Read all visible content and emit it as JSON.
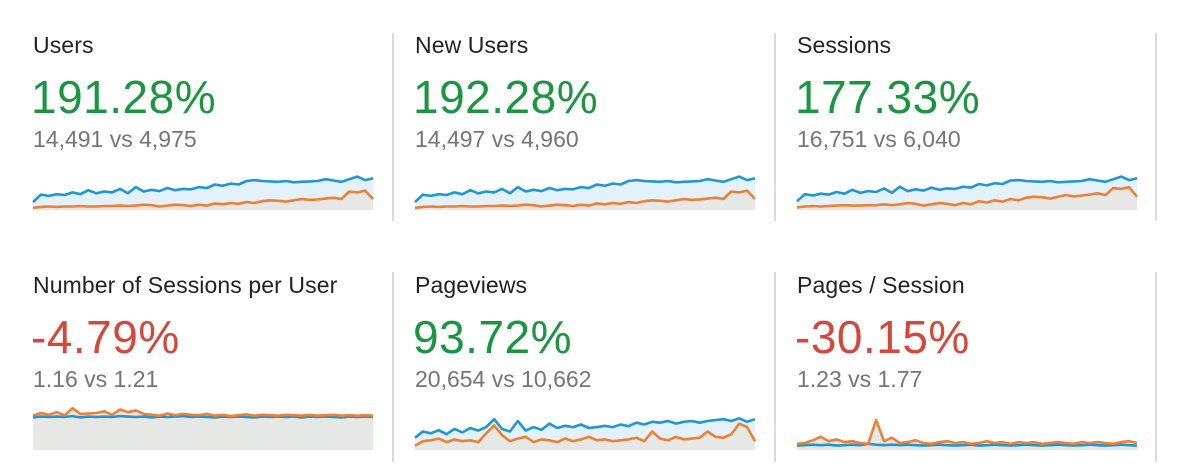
{
  "colors": {
    "positive": "#1a9641",
    "negative": "#d6463a",
    "current_line": "#2196d3",
    "current_fill": "#e3f2fa",
    "previous_line": "#ef7f33",
    "previous_fill": "#e6e8e6"
  },
  "metrics": [
    {
      "label": "Users",
      "change": "191.28%",
      "trend": "positive",
      "comparison": "14,491 vs 4,975",
      "spark_current": [
        0.18,
        0.35,
        0.32,
        0.36,
        0.34,
        0.4,
        0.36,
        0.45,
        0.38,
        0.42,
        0.4,
        0.48,
        0.38,
        0.52,
        0.42,
        0.46,
        0.43,
        0.5,
        0.45,
        0.48,
        0.47,
        0.52,
        0.5,
        0.58,
        0.55,
        0.6,
        0.58,
        0.66,
        0.68,
        0.66,
        0.65,
        0.64,
        0.66,
        0.63,
        0.64,
        0.65,
        0.66,
        0.7,
        0.67,
        0.64,
        0.7,
        0.76,
        0.68,
        0.72
      ],
      "spark_previous": [
        0.05,
        0.07,
        0.08,
        0.07,
        0.08,
        0.08,
        0.09,
        0.08,
        0.08,
        0.09,
        0.09,
        0.1,
        0.09,
        0.1,
        0.12,
        0.11,
        0.08,
        0.1,
        0.12,
        0.11,
        0.09,
        0.12,
        0.1,
        0.15,
        0.13,
        0.16,
        0.14,
        0.18,
        0.16,
        0.2,
        0.22,
        0.21,
        0.19,
        0.22,
        0.25,
        0.23,
        0.24,
        0.26,
        0.28,
        0.25,
        0.42,
        0.4,
        0.44,
        0.25
      ]
    },
    {
      "label": "New Users",
      "change": "192.28%",
      "trend": "positive",
      "comparison": "14,497 vs 4,960",
      "spark_current": [
        0.18,
        0.35,
        0.32,
        0.36,
        0.34,
        0.4,
        0.36,
        0.45,
        0.38,
        0.42,
        0.4,
        0.48,
        0.38,
        0.52,
        0.42,
        0.46,
        0.43,
        0.5,
        0.45,
        0.48,
        0.47,
        0.52,
        0.5,
        0.58,
        0.55,
        0.6,
        0.58,
        0.66,
        0.68,
        0.66,
        0.65,
        0.64,
        0.66,
        0.63,
        0.64,
        0.65,
        0.66,
        0.7,
        0.67,
        0.64,
        0.7,
        0.76,
        0.68,
        0.72
      ],
      "spark_previous": [
        0.05,
        0.07,
        0.08,
        0.07,
        0.08,
        0.08,
        0.09,
        0.08,
        0.08,
        0.09,
        0.09,
        0.1,
        0.09,
        0.1,
        0.12,
        0.11,
        0.08,
        0.1,
        0.12,
        0.11,
        0.09,
        0.12,
        0.1,
        0.15,
        0.13,
        0.16,
        0.14,
        0.18,
        0.16,
        0.2,
        0.22,
        0.21,
        0.19,
        0.22,
        0.25,
        0.23,
        0.24,
        0.26,
        0.28,
        0.25,
        0.42,
        0.4,
        0.44,
        0.25
      ]
    },
    {
      "label": "Sessions",
      "change": "177.33%",
      "trend": "positive",
      "comparison": "16,751 vs 6,040",
      "spark_current": [
        0.2,
        0.36,
        0.33,
        0.37,
        0.35,
        0.41,
        0.37,
        0.46,
        0.39,
        0.43,
        0.41,
        0.49,
        0.39,
        0.53,
        0.43,
        0.47,
        0.44,
        0.51,
        0.46,
        0.49,
        0.48,
        0.53,
        0.51,
        0.59,
        0.56,
        0.61,
        0.59,
        0.67,
        0.68,
        0.66,
        0.65,
        0.64,
        0.66,
        0.63,
        0.64,
        0.65,
        0.66,
        0.7,
        0.67,
        0.64,
        0.7,
        0.76,
        0.68,
        0.72
      ],
      "spark_previous": [
        0.06,
        0.08,
        0.09,
        0.08,
        0.09,
        0.1,
        0.11,
        0.1,
        0.1,
        0.11,
        0.11,
        0.13,
        0.11,
        0.13,
        0.16,
        0.14,
        0.1,
        0.13,
        0.16,
        0.14,
        0.11,
        0.16,
        0.13,
        0.2,
        0.17,
        0.22,
        0.19,
        0.25,
        0.22,
        0.28,
        0.3,
        0.29,
        0.26,
        0.3,
        0.34,
        0.31,
        0.33,
        0.35,
        0.38,
        0.34,
        0.5,
        0.48,
        0.52,
        0.3
      ]
    },
    {
      "label": "Number of Sessions per User",
      "change": "-4.79%",
      "trend": "negative",
      "comparison": "1.16 vs 1.21",
      "spark_current": [
        0.74,
        0.76,
        0.75,
        0.76,
        0.75,
        0.77,
        0.74,
        0.76,
        0.75,
        0.76,
        0.75,
        0.77,
        0.76,
        0.75,
        0.76,
        0.74,
        0.76,
        0.75,
        0.76,
        0.77,
        0.75,
        0.76,
        0.75,
        0.74,
        0.76,
        0.75,
        0.76,
        0.75,
        0.74,
        0.76,
        0.75,
        0.76,
        0.75,
        0.76,
        0.74,
        0.76,
        0.75,
        0.76,
        0.75,
        0.74,
        0.76,
        0.75,
        0.76,
        0.75
      ],
      "spark_previous": [
        0.78,
        0.84,
        0.8,
        0.86,
        0.79,
        0.95,
        0.82,
        0.83,
        0.84,
        0.88,
        0.8,
        0.92,
        0.86,
        0.9,
        0.82,
        0.8,
        0.78,
        0.83,
        0.79,
        0.82,
        0.8,
        0.79,
        0.82,
        0.78,
        0.8,
        0.77,
        0.79,
        0.81,
        0.78,
        0.8,
        0.79,
        0.78,
        0.8,
        0.79,
        0.78,
        0.8,
        0.78,
        0.79,
        0.8,
        0.78,
        0.79,
        0.78,
        0.79,
        0.78
      ]
    },
    {
      "label": "Pageviews",
      "change": "93.72%",
      "trend": "positive",
      "comparison": "20,654 vs 10,662",
      "spark_current": [
        0.28,
        0.42,
        0.38,
        0.45,
        0.36,
        0.48,
        0.4,
        0.5,
        0.44,
        0.52,
        0.7,
        0.48,
        0.42,
        0.66,
        0.44,
        0.52,
        0.46,
        0.6,
        0.5,
        0.55,
        0.52,
        0.58,
        0.5,
        0.52,
        0.55,
        0.52,
        0.58,
        0.54,
        0.62,
        0.58,
        0.64,
        0.62,
        0.66,
        0.6,
        0.64,
        0.66,
        0.62,
        0.66,
        0.68,
        0.7,
        0.66,
        0.72,
        0.64,
        0.7
      ],
      "spark_previous": [
        0.1,
        0.2,
        0.22,
        0.26,
        0.18,
        0.24,
        0.2,
        0.22,
        0.18,
        0.38,
        0.56,
        0.34,
        0.2,
        0.26,
        0.3,
        0.18,
        0.24,
        0.22,
        0.18,
        0.26,
        0.2,
        0.24,
        0.3,
        0.22,
        0.24,
        0.2,
        0.22,
        0.24,
        0.28,
        0.2,
        0.42,
        0.26,
        0.22,
        0.3,
        0.24,
        0.26,
        0.28,
        0.42,
        0.3,
        0.28,
        0.36,
        0.6,
        0.52,
        0.2
      ]
    },
    {
      "label": "Pages / Session",
      "change": "-30.15%",
      "trend": "negative",
      "comparison": "1.23 vs 1.77",
      "spark_current": [
        0.1,
        0.11,
        0.12,
        0.11,
        0.12,
        0.1,
        0.11,
        0.12,
        0.11,
        0.14,
        0.12,
        0.11,
        0.12,
        0.11,
        0.12,
        0.11,
        0.1,
        0.11,
        0.12,
        0.11,
        0.1,
        0.11,
        0.12,
        0.1,
        0.11,
        0.12,
        0.11,
        0.1,
        0.11,
        0.12,
        0.11,
        0.1,
        0.11,
        0.12,
        0.11,
        0.1,
        0.11,
        0.12,
        0.11,
        0.1,
        0.11,
        0.12,
        0.11,
        0.1
      ],
      "spark_previous": [
        0.14,
        0.16,
        0.22,
        0.3,
        0.2,
        0.24,
        0.18,
        0.2,
        0.16,
        0.14,
        0.68,
        0.2,
        0.28,
        0.16,
        0.18,
        0.22,
        0.16,
        0.14,
        0.18,
        0.2,
        0.16,
        0.18,
        0.14,
        0.16,
        0.2,
        0.16,
        0.18,
        0.14,
        0.18,
        0.16,
        0.18,
        0.14,
        0.16,
        0.18,
        0.16,
        0.14,
        0.18,
        0.16,
        0.18,
        0.16,
        0.14,
        0.18,
        0.2,
        0.16
      ]
    }
  ]
}
